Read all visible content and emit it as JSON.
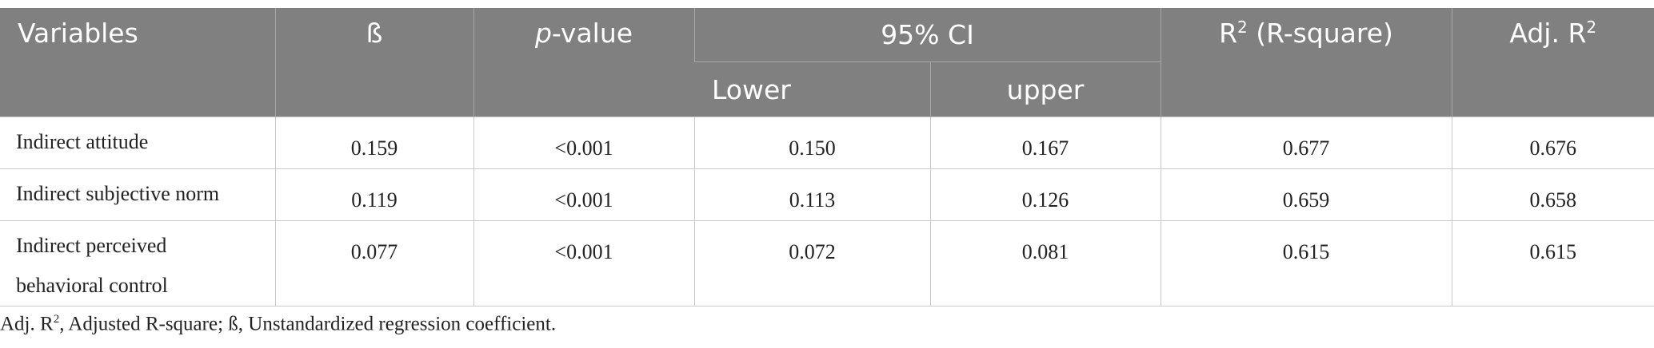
{
  "table": {
    "header": {
      "variables": "Variables",
      "beta": "ß",
      "p_value": {
        "italic": "p",
        "rest": "-value"
      },
      "ci": "95% CI",
      "lower": "Lower",
      "upper": "upper",
      "r2": {
        "base": "R",
        "sup": "2",
        "rest": " (R-square)"
      },
      "adj_r2": {
        "base": "Adj. R",
        "sup": "2"
      }
    },
    "rows": [
      [
        "Indirect attitude",
        "0.159",
        "<0.001",
        "0.150",
        "0.167",
        "0.677",
        "0.676"
      ],
      [
        "Indirect subjective norm",
        "0.119",
        "<0.001",
        "0.113",
        "0.126",
        "0.659",
        "0.658"
      ],
      [
        "Indirect perceived behavioral control",
        "0.077",
        "<0.001",
        "0.072",
        "0.081",
        "0.615",
        "0.615"
      ]
    ]
  },
  "footnote": {
    "base": "Adj. R",
    "sup": "2",
    "rest": ", Adjusted R-square; ß, Unstandardized regression coefficient."
  }
}
